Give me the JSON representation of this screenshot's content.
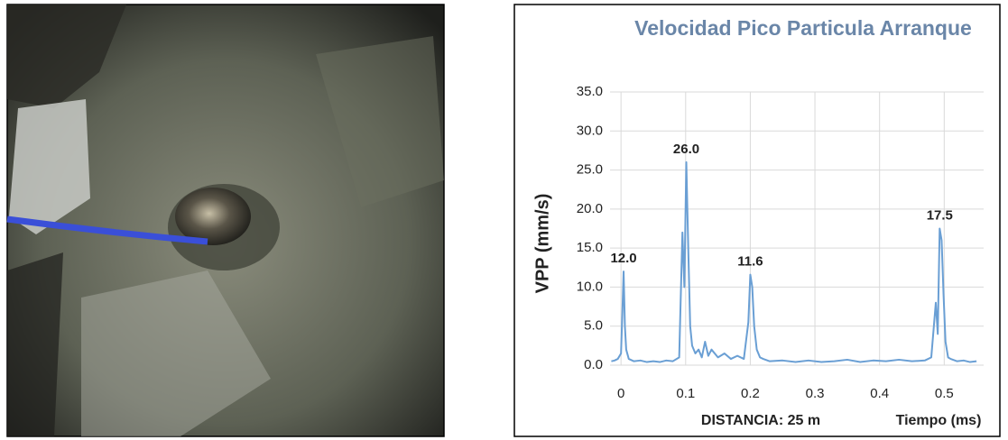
{
  "chart_data": {
    "type": "line",
    "title": "Velocidad Pico Particula Arranque",
    "ylabel": "VPP (mm/s)",
    "xlabel": "Tiempo (ms)",
    "annotation": "DISTANCIA: 25 m",
    "x": [
      -0.015,
      -0.01,
      -0.005,
      0,
      0.002,
      0.004,
      0.006,
      0.008,
      0.012,
      0.02,
      0.03,
      0.04,
      0.05,
      0.06,
      0.07,
      0.08,
      0.09,
      0.095,
      0.098,
      0.101,
      0.104,
      0.107,
      0.11,
      0.115,
      0.12,
      0.125,
      0.13,
      0.135,
      0.14,
      0.15,
      0.16,
      0.17,
      0.18,
      0.19,
      0.197,
      0.2,
      0.203,
      0.206,
      0.21,
      0.215,
      0.22,
      0.23,
      0.25,
      0.27,
      0.29,
      0.31,
      0.33,
      0.35,
      0.37,
      0.39,
      0.41,
      0.43,
      0.45,
      0.47,
      0.48,
      0.487,
      0.49,
      0.493,
      0.496,
      0.499,
      0.502,
      0.506,
      0.51,
      0.52,
      0.53,
      0.54,
      0.55
    ],
    "series": [
      {
        "color": "#6a9fd4",
        "values": [
          0.5,
          0.6,
          0.8,
          1.5,
          6.5,
          12.0,
          5.0,
          2.0,
          0.8,
          0.5,
          0.6,
          0.4,
          0.5,
          0.4,
          0.6,
          0.5,
          1.0,
          17.0,
          10.0,
          26.0,
          15.0,
          5.0,
          2.5,
          1.5,
          2.0,
          1.0,
          3.0,
          1.2,
          2.0,
          1.0,
          1.5,
          0.8,
          1.2,
          0.8,
          5.5,
          11.6,
          10.0,
          5.0,
          2.0,
          1.0,
          0.8,
          0.5,
          0.6,
          0.4,
          0.6,
          0.4,
          0.5,
          0.7,
          0.4,
          0.6,
          0.5,
          0.7,
          0.5,
          0.6,
          1.0,
          8.0,
          4.0,
          17.5,
          16.0,
          9.0,
          3.0,
          1.0,
          0.8,
          0.5,
          0.6,
          0.4,
          0.5
        ]
      }
    ],
    "peak_labels": [
      {
        "x": 0.004,
        "value": 12.0,
        "label": "12.0"
      },
      {
        "x": 0.101,
        "value": 26.0,
        "label": "26.0"
      },
      {
        "x": 0.2,
        "value": 11.6,
        "label": "11.6"
      },
      {
        "x": 0.493,
        "value": 17.5,
        "label": "17.5"
      }
    ],
    "xlim": [
      -0.017,
      0.561
    ],
    "ylim": [
      0,
      35
    ],
    "xticks": [
      0,
      0.1,
      0.2,
      0.3,
      0.4,
      0.5
    ],
    "yticks": [
      {
        "value": 0,
        "label": "0.0"
      },
      {
        "value": 5,
        "label": "5.0"
      },
      {
        "value": 10,
        "label": "10.0"
      },
      {
        "value": 15,
        "label": "15.0"
      },
      {
        "value": 20,
        "label": "20.0"
      },
      {
        "value": 25,
        "label": "25.0"
      },
      {
        "value": 30,
        "label": "30.0"
      },
      {
        "value": 35,
        "label": "35.0"
      }
    ],
    "grid": true
  }
}
